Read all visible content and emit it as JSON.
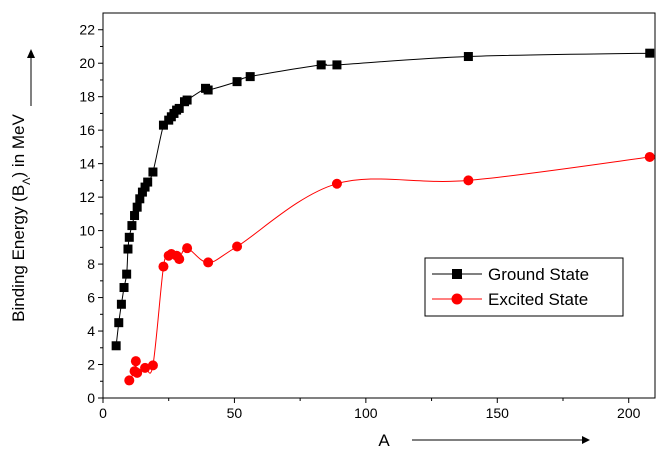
{
  "chart_data": {
    "type": "scatter",
    "xlabel": "A",
    "ylabel": "Binding Energy (B",
    "ylabel_sub": "Λ",
    "ylabel_suffix": ") in MeV",
    "xlim": [
      0,
      210
    ],
    "ylim": [
      0,
      23
    ],
    "xticks": [
      0,
      50,
      100,
      150,
      200
    ],
    "yticks": [
      0,
      2,
      4,
      6,
      8,
      10,
      12,
      14,
      16,
      18,
      20,
      22
    ],
    "grid": false,
    "legend_position": "center-right",
    "series": [
      {
        "name": "Ground State",
        "color": "#000000",
        "marker": "square",
        "x": [
          5,
          6,
          7,
          8,
          9,
          9.5,
          10,
          11,
          12,
          13,
          14,
          15,
          16,
          17,
          19,
          23,
          25,
          26,
          27,
          28,
          29,
          31,
          32,
          39,
          40,
          51,
          56,
          83,
          89,
          139,
          208
        ],
        "y": [
          3.12,
          4.5,
          5.6,
          6.6,
          7.4,
          8.9,
          9.6,
          10.3,
          10.9,
          11.4,
          11.9,
          12.3,
          12.6,
          12.9,
          13.5,
          16.3,
          16.6,
          16.8,
          17.0,
          17.2,
          17.3,
          17.7,
          17.8,
          18.5,
          18.4,
          18.9,
          19.2,
          19.9,
          19.9,
          20.4,
          20.6
        ]
      },
      {
        "name": "Excited State",
        "color": "#ff0000",
        "marker": "circle",
        "x": [
          10,
          12,
          12.5,
          13,
          16,
          19,
          23,
          25,
          26,
          28,
          29,
          32,
          40,
          51,
          89,
          139,
          208
        ],
        "y": [
          1.05,
          1.6,
          2.2,
          1.5,
          1.8,
          1.95,
          7.85,
          8.5,
          8.6,
          8.5,
          8.3,
          8.95,
          8.1,
          9.05,
          12.8,
          13.0,
          14.4
        ]
      }
    ]
  }
}
